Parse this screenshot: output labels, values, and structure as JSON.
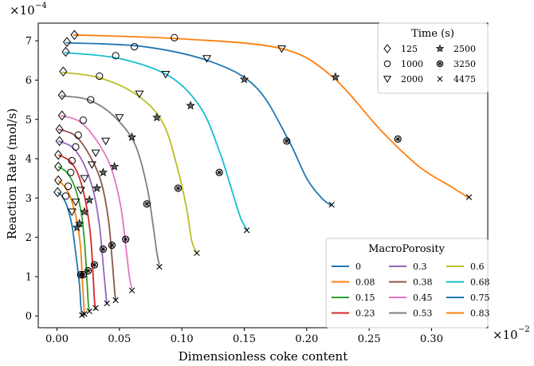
{
  "chart_data": {
    "type": "line",
    "xlabel": "Dimensionless coke content",
    "ylabel": "Reaction Rate (mol/s)",
    "x_scale_label": "×10",
    "x_scale_exp": "−2",
    "y_scale_label": "×10",
    "y_scale_exp": "−4",
    "xlim": [
      -0.015,
      0.345
    ],
    "ylim": [
      -0.3,
      7.45
    ],
    "xticks": [
      0.0,
      0.05,
      0.1,
      0.15,
      0.2,
      0.25,
      0.3
    ],
    "xtick_labels": [
      "0.00",
      "0.05",
      "0.10",
      "0.15",
      "0.20",
      "0.25",
      "0.30"
    ],
    "yticks": [
      0,
      1,
      2,
      3,
      4,
      5,
      6,
      7
    ],
    "ytick_labels": [
      "0",
      "1",
      "2",
      "3",
      "4",
      "5",
      "6",
      "7"
    ],
    "grid": false,
    "series_legend": {
      "title": "MacroPorosity",
      "placement": "lower-right"
    },
    "marker_legend": {
      "title": "Time (s)",
      "placement": "upper-right",
      "entries": [
        {
          "label": "125",
          "marker": "diamond"
        },
        {
          "label": "2500",
          "marker": "star"
        },
        {
          "label": "1000",
          "marker": "circle"
        },
        {
          "label": "3250",
          "marker": "xcircle"
        },
        {
          "label": "2000",
          "marker": "triangle"
        },
        {
          "label": "4475",
          "marker": "x"
        }
      ]
    },
    "series": [
      {
        "name": "0",
        "color": "#1f77b4",
        "x": [
          0.0005,
          0.004,
          0.008,
          0.012,
          0.015,
          0.018,
          0.019,
          0.02
        ],
        "y": [
          3.15,
          3.05,
          2.8,
          2.3,
          1.6,
          0.8,
          0.3,
          0.0
        ]
      },
      {
        "name": "0.08",
        "color": "#ff7f0e",
        "x": [
          0.001,
          0.006,
          0.011,
          0.016,
          0.019,
          0.0205,
          0.0215,
          0.022
        ],
        "y": [
          3.45,
          3.3,
          3.0,
          2.4,
          1.7,
          0.8,
          0.3,
          0.0
        ]
      },
      {
        "name": "0.15",
        "color": "#2ca02c",
        "x": [
          0.001,
          0.008,
          0.014,
          0.019,
          0.022,
          0.024,
          0.025,
          0.026
        ],
        "y": [
          3.8,
          3.65,
          3.3,
          2.7,
          1.9,
          0.9,
          0.35,
          0.1
        ]
      },
      {
        "name": "0.23",
        "color": "#d62728",
        "x": [
          0.001,
          0.01,
          0.017,
          0.023,
          0.027,
          0.029,
          0.03,
          0.031
        ],
        "y": [
          4.1,
          3.95,
          3.6,
          2.9,
          2.0,
          1.0,
          0.4,
          0.15
        ]
      },
      {
        "name": "0.3",
        "color": "#9467bd",
        "x": [
          0.001,
          0.012,
          0.021,
          0.029,
          0.034,
          0.037,
          0.039,
          0.04
        ],
        "y": [
          4.45,
          4.3,
          3.9,
          3.2,
          2.3,
          1.3,
          0.6,
          0.3
        ]
      },
      {
        "name": "0.38",
        "color": "#8c564b",
        "x": [
          0.001,
          0.014,
          0.025,
          0.035,
          0.041,
          0.044,
          0.046,
          0.047
        ],
        "y": [
          4.75,
          4.6,
          4.15,
          3.45,
          2.5,
          1.5,
          0.7,
          0.4
        ]
      },
      {
        "name": "0.45",
        "color": "#e377c2",
        "x": [
          0.003,
          0.018,
          0.031,
          0.043,
          0.051,
          0.055,
          0.058,
          0.06
        ],
        "y": [
          5.1,
          4.95,
          4.5,
          3.8,
          2.8,
          1.8,
          1.0,
          0.7
        ]
      },
      {
        "name": "0.53",
        "color": "#7f7f7f",
        "x": [
          0.003,
          0.025,
          0.045,
          0.062,
          0.072,
          0.077,
          0.08,
          0.082
        ],
        "y": [
          5.6,
          5.5,
          5.1,
          4.4,
          3.3,
          2.3,
          1.6,
          1.3
        ]
      },
      {
        "name": "0.6",
        "color": "#bcbd22",
        "x": [
          0.004,
          0.035,
          0.065,
          0.085,
          0.097,
          0.104,
          0.108,
          0.112
        ],
        "y": [
          6.2,
          6.05,
          5.6,
          4.9,
          3.7,
          2.7,
          1.9,
          1.6
        ]
      },
      {
        "name": "0.68",
        "color": "#17becf",
        "x": [
          0.006,
          0.05,
          0.09,
          0.115,
          0.13,
          0.14,
          0.147,
          0.152
        ],
        "y": [
          6.7,
          6.55,
          6.1,
          5.3,
          4.2,
          3.2,
          2.5,
          2.2
        ]
      },
      {
        "name": "0.75",
        "color": "#1f77b4",
        "x": [
          0.007,
          0.07,
          0.125,
          0.16,
          0.185,
          0.2,
          0.212,
          0.22
        ],
        "y": [
          6.95,
          6.85,
          6.45,
          5.8,
          4.5,
          3.5,
          3.0,
          2.8
        ]
      },
      {
        "name": "0.83",
        "color": "#ff7f0e",
        "x": [
          0.013,
          0.1,
          0.18,
          0.22,
          0.26,
          0.29,
          0.315,
          0.33
        ],
        "y": [
          7.15,
          7.05,
          6.8,
          6.1,
          4.7,
          3.8,
          3.3,
          3.0
        ]
      }
    ],
    "markers": [
      {
        "series": 0,
        "points": [
          [
            0.0005,
            3.15,
            "diamond"
          ],
          [
            0.007,
            3.05,
            "circle"
          ],
          [
            0.012,
            2.65,
            "triangle"
          ],
          [
            0.016,
            2.25,
            "star"
          ],
          [
            0.019,
            1.05,
            "xcircle"
          ],
          [
            0.02,
            0.02,
            "x"
          ]
        ]
      },
      {
        "series": 1,
        "points": [
          [
            0.001,
            3.45,
            "diamond"
          ],
          [
            0.009,
            3.3,
            "circle"
          ],
          [
            0.015,
            2.9,
            "triangle"
          ],
          [
            0.018,
            2.35,
            "star"
          ],
          [
            0.021,
            1.05,
            "xcircle"
          ],
          [
            0.022,
            0.05,
            "x"
          ]
        ]
      },
      {
        "series": 2,
        "points": [
          [
            0.001,
            3.8,
            "diamond"
          ],
          [
            0.011,
            3.65,
            "circle"
          ],
          [
            0.019,
            3.2,
            "triangle"
          ],
          [
            0.022,
            2.65,
            "star"
          ],
          [
            0.025,
            1.15,
            "xcircle"
          ],
          [
            0.026,
            0.12,
            "x"
          ]
        ]
      },
      {
        "series": 3,
        "points": [
          [
            0.001,
            4.1,
            "diamond"
          ],
          [
            0.012,
            3.95,
            "circle"
          ],
          [
            0.022,
            3.5,
            "triangle"
          ],
          [
            0.026,
            2.95,
            "star"
          ],
          [
            0.03,
            1.3,
            "xcircle"
          ],
          [
            0.031,
            0.2,
            "x"
          ]
        ]
      },
      {
        "series": 4,
        "points": [
          [
            0.002,
            4.45,
            "diamond"
          ],
          [
            0.015,
            4.3,
            "circle"
          ],
          [
            0.028,
            3.85,
            "triangle"
          ],
          [
            0.032,
            3.25,
            "star"
          ],
          [
            0.037,
            1.7,
            "xcircle"
          ],
          [
            0.04,
            0.32,
            "x"
          ]
        ]
      },
      {
        "series": 5,
        "points": [
          [
            0.002,
            4.75,
            "diamond"
          ],
          [
            0.017,
            4.6,
            "circle"
          ],
          [
            0.031,
            4.15,
            "triangle"
          ],
          [
            0.037,
            3.65,
            "star"
          ],
          [
            0.044,
            1.8,
            "xcircle"
          ],
          [
            0.047,
            0.4,
            "x"
          ]
        ]
      },
      {
        "series": 6,
        "points": [
          [
            0.004,
            5.1,
            "diamond"
          ],
          [
            0.021,
            4.98,
            "circle"
          ],
          [
            0.039,
            4.45,
            "triangle"
          ],
          [
            0.046,
            3.8,
            "star"
          ],
          [
            0.055,
            1.95,
            "xcircle"
          ],
          [
            0.06,
            0.65,
            "x"
          ]
        ]
      },
      {
        "series": 7,
        "points": [
          [
            0.004,
            5.62,
            "diamond"
          ],
          [
            0.027,
            5.5,
            "circle"
          ],
          [
            0.05,
            5.05,
            "triangle"
          ],
          [
            0.06,
            4.55,
            "star"
          ],
          [
            0.072,
            2.85,
            "xcircle"
          ],
          [
            0.082,
            1.25,
            "x"
          ]
        ]
      },
      {
        "series": 8,
        "points": [
          [
            0.005,
            6.22,
            "diamond"
          ],
          [
            0.034,
            6.1,
            "circle"
          ],
          [
            0.066,
            5.65,
            "triangle"
          ],
          [
            0.08,
            5.05,
            "star"
          ],
          [
            0.097,
            3.25,
            "xcircle"
          ],
          [
            0.112,
            1.6,
            "x"
          ]
        ]
      },
      {
        "series": 9,
        "points": [
          [
            0.007,
            6.72,
            "diamond"
          ],
          [
            0.047,
            6.62,
            "circle"
          ],
          [
            0.087,
            6.15,
            "triangle"
          ],
          [
            0.107,
            5.35,
            "star"
          ],
          [
            0.13,
            3.65,
            "xcircle"
          ],
          [
            0.152,
            2.18,
            "x"
          ]
        ]
      },
      {
        "series": 10,
        "points": [
          [
            0.008,
            6.97,
            "diamond"
          ],
          [
            0.062,
            6.85,
            "circle"
          ],
          [
            0.12,
            6.55,
            "triangle"
          ],
          [
            0.15,
            6.02,
            "star"
          ],
          [
            0.184,
            4.45,
            "xcircle"
          ],
          [
            0.22,
            2.83,
            "x"
          ]
        ]
      },
      {
        "series": 11,
        "points": [
          [
            0.014,
            7.15,
            "diamond"
          ],
          [
            0.094,
            7.08,
            "circle"
          ],
          [
            0.18,
            6.8,
            "triangle"
          ],
          [
            0.223,
            6.08,
            "star"
          ],
          [
            0.273,
            4.5,
            "xcircle"
          ],
          [
            0.33,
            3.02,
            "x"
          ]
        ]
      }
    ]
  }
}
